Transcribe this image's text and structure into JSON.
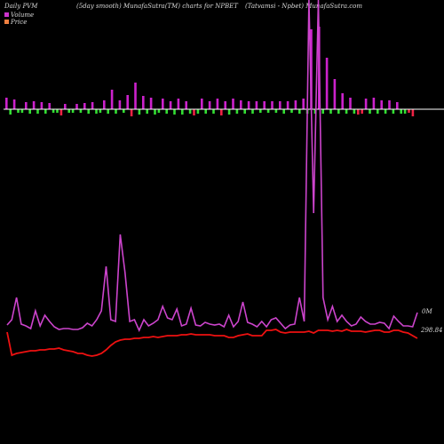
{
  "header": {
    "left": "Daily PVM",
    "mid": "(5day smooth) MunafaSutra(TM) charts for NPBET",
    "right": "(Tatvamsi - Npbet) MunafaSutra.com"
  },
  "legend": [
    {
      "label": "Volume",
      "color": "#cc33cc"
    },
    {
      "label": "Price",
      "color": "#f08040"
    }
  ],
  "colors": {
    "background": "#000000",
    "up": "#cc22cc",
    "down": "#33dd33",
    "red_down": "#ee2244",
    "volume_line": "#cc44cc",
    "price_line": "#ee1111",
    "baseline": "#ffffff"
  },
  "chart_data": {
    "type": "bar",
    "bars": {
      "heights": [
        13,
        -6,
        11,
        -4,
        -4,
        8,
        -5,
        9,
        -5,
        8,
        -5,
        7,
        -4,
        -4,
        -7,
        6,
        -4,
        -4,
        6,
        -4,
        7,
        -5,
        8,
        -5,
        -4,
        10,
        -5,
        22,
        -5,
        10,
        -4,
        16,
        -8,
        30,
        -6,
        15,
        -5,
        13,
        -6,
        -4,
        12,
        -5,
        9,
        -6,
        12,
        -6,
        9,
        -5,
        -7,
        -5,
        12,
        -5,
        9,
        -5,
        12,
        -7,
        9,
        -6,
        12,
        -5,
        10,
        -5,
        9,
        -5,
        9,
        -4,
        9,
        -4,
        9,
        -4,
        9,
        -5,
        9,
        -4,
        10,
        -5,
        12,
        -5,
        90,
        -5,
        93,
        -5,
        58,
        -5,
        34,
        -5,
        18,
        -5,
        13,
        -5,
        -6,
        -5,
        12,
        -5,
        13,
        -5,
        10,
        -5,
        10,
        -5,
        8,
        -5,
        -5,
        -4,
        -8
      ],
      "colors": [
        "up",
        "down",
        "up",
        "down",
        "down",
        "up",
        "down",
        "up",
        "down",
        "up",
        "down",
        "up",
        "down",
        "down",
        "red_down",
        "up",
        "down",
        "down",
        "up",
        "down",
        "up",
        "down",
        "up",
        "down",
        "down",
        "up",
        "down",
        "up",
        "down",
        "up",
        "down",
        "up",
        "red_down",
        "up",
        "down",
        "up",
        "down",
        "up",
        "down",
        "down",
        "up",
        "down",
        "up",
        "down",
        "up",
        "down",
        "up",
        "down",
        "red_down",
        "down",
        "up",
        "down",
        "up",
        "down",
        "up",
        "red_down",
        "up",
        "down",
        "up",
        "down",
        "up",
        "down",
        "up",
        "down",
        "up",
        "down",
        "up",
        "down",
        "up",
        "down",
        "up",
        "down",
        "up",
        "down",
        "up",
        "down",
        "up",
        "down",
        "up",
        "down",
        "up",
        "down",
        "up",
        "down",
        "up",
        "down",
        "up",
        "down",
        "up",
        "down",
        "red_down",
        "red_down",
        "up",
        "down",
        "up",
        "down",
        "up",
        "down",
        "up",
        "down",
        "up",
        "down",
        "down",
        "red_down",
        "red_down"
      ]
    },
    "volume_line": [
      366,
      360,
      335,
      365,
      367,
      370,
      350,
      367,
      355,
      362,
      368,
      371,
      370,
      370,
      371,
      371,
      369,
      364,
      367,
      360,
      350,
      300,
      360,
      362,
      264,
      307,
      362,
      360,
      372,
      360,
      367,
      364,
      360,
      345,
      358,
      360,
      348,
      367,
      365,
      347,
      366,
      367,
      363,
      365,
      366,
      365,
      368,
      355,
      368,
      362,
      340,
      363,
      365,
      368,
      362,
      368,
      360,
      358,
      364,
      370,
      366,
      365,
      335,
      362,
      0,
      240,
      0,
      335,
      360,
      345,
      362,
      355,
      362,
      367,
      365,
      357,
      362,
      365,
      365,
      363,
      364,
      370,
      356,
      362,
      367,
      367,
      368,
      352
    ],
    "price_line": [
      374,
      400,
      398,
      397,
      396,
      395,
      395,
      394,
      394,
      393,
      393,
      392,
      394,
      395,
      396,
      398,
      398,
      400,
      401,
      400,
      398,
      394,
      389,
      385,
      383,
      382,
      382,
      381,
      381,
      380,
      380,
      379,
      380,
      379,
      378,
      378,
      378,
      377,
      377,
      376,
      377,
      377,
      377,
      377,
      378,
      378,
      378,
      380,
      380,
      378,
      377,
      376,
      378,
      378,
      378,
      372,
      372,
      371,
      374,
      375,
      374,
      374,
      374,
      374,
      373,
      375,
      372,
      372,
      372,
      373,
      372,
      373,
      371,
      373,
      373,
      373,
      374,
      373,
      372,
      372,
      374,
      374,
      372,
      372,
      374,
      375,
      378,
      381
    ],
    "value_labels": [
      "0M",
      "298.84"
    ]
  }
}
